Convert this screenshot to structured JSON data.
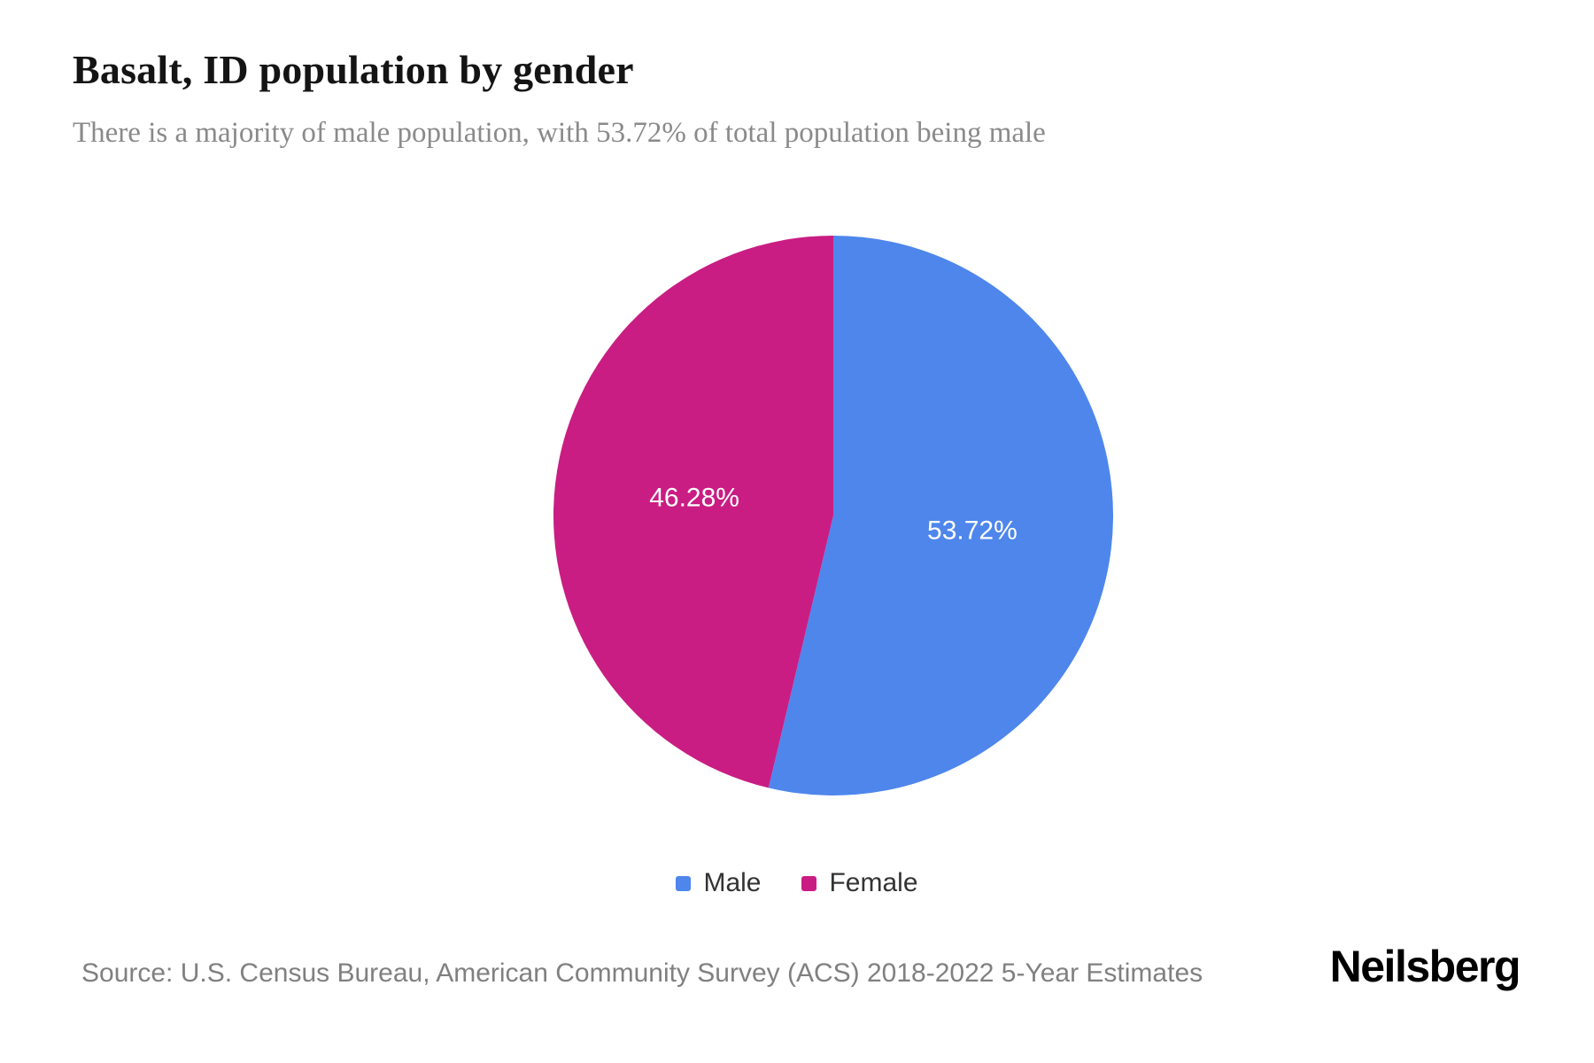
{
  "page": {
    "title": "Basalt, ID population by gender",
    "subtitle": "There is a majority of male population, with 53.72% of total population being male",
    "source": "Source: U.S. Census Bureau, American Community Survey (ACS) 2018-2022 5-Year Estimates",
    "brand": "Neilsberg"
  },
  "chart_data": {
    "type": "pie",
    "title": "Basalt, ID population by gender",
    "categories": [
      "Male",
      "Female"
    ],
    "values": [
      53.72,
      46.28
    ],
    "slice_labels": [
      "53.72%",
      "46.28%"
    ],
    "colors": [
      "#4E86EC",
      "#C91D83"
    ],
    "start_angle_deg": 0,
    "direction": "clockwise",
    "legend_position": "bottom",
    "label_color": "#ffffff"
  }
}
